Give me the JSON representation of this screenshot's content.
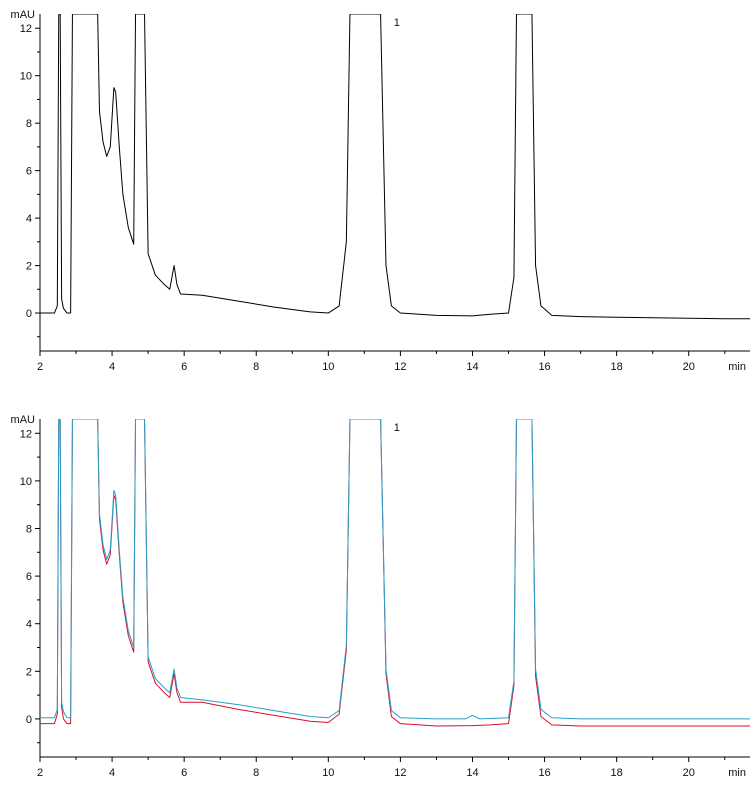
{
  "chart_data": [
    {
      "type": "line",
      "title": "",
      "xlabel": "min",
      "ylabel": "mAU",
      "xlim": [
        2,
        21.7
      ],
      "ylim": [
        -1.6,
        12.6
      ],
      "xticks": [
        2,
        4,
        6,
        8,
        10,
        12,
        14,
        16,
        18,
        20
      ],
      "yticks": [
        0,
        2,
        4,
        6,
        8,
        10,
        12
      ],
      "annotations": [
        {
          "text": "1",
          "x": 11.9,
          "y": 12.1
        }
      ],
      "series": [
        {
          "color": "#000000",
          "points": [
            [
              2.0,
              0.0
            ],
            [
              2.4,
              0.0
            ],
            [
              2.48,
              0.3
            ],
            [
              2.52,
              12.6
            ],
            [
              2.56,
              12.6
            ],
            [
              2.6,
              0.6
            ],
            [
              2.65,
              0.2
            ],
            [
              2.75,
              0.0
            ],
            [
              2.85,
              0.0
            ],
            [
              2.9,
              12.6
            ],
            [
              2.95,
              12.6
            ],
            [
              2.98,
              12.6
            ],
            [
              3.0,
              12.6
            ],
            [
              3.6,
              12.6
            ],
            [
              3.65,
              8.5
            ],
            [
              3.75,
              7.2
            ],
            [
              3.85,
              6.6
            ],
            [
              3.95,
              7.0
            ],
            [
              4.05,
              9.5
            ],
            [
              4.1,
              9.3
            ],
            [
              4.2,
              7.0
            ],
            [
              4.3,
              5.0
            ],
            [
              4.45,
              3.6
            ],
            [
              4.6,
              2.9
            ],
            [
              4.65,
              12.6
            ],
            [
              4.9,
              12.6
            ],
            [
              5.0,
              2.5
            ],
            [
              5.2,
              1.6
            ],
            [
              5.45,
              1.2
            ],
            [
              5.6,
              1.0
            ],
            [
              5.72,
              2.0
            ],
            [
              5.8,
              1.2
            ],
            [
              5.9,
              0.8
            ],
            [
              6.5,
              0.75
            ],
            [
              7.5,
              0.5
            ],
            [
              8.5,
              0.25
            ],
            [
              9.5,
              0.05
            ],
            [
              10.0,
              0.0
            ],
            [
              10.3,
              0.3
            ],
            [
              10.5,
              3.0
            ],
            [
              10.6,
              12.6
            ],
            [
              11.45,
              12.6
            ],
            [
              11.6,
              2.0
            ],
            [
              11.75,
              0.3
            ],
            [
              12.0,
              0.0
            ],
            [
              13.0,
              -0.1
            ],
            [
              14.0,
              -0.12
            ],
            [
              14.5,
              -0.05
            ],
            [
              15.0,
              0.0
            ],
            [
              15.15,
              1.5
            ],
            [
              15.22,
              12.6
            ],
            [
              15.65,
              12.6
            ],
            [
              15.75,
              2.0
            ],
            [
              15.9,
              0.3
            ],
            [
              16.2,
              -0.1
            ],
            [
              17.0,
              -0.15
            ],
            [
              18.0,
              -0.18
            ],
            [
              19.0,
              -0.2
            ],
            [
              20.0,
              -0.22
            ],
            [
              21.0,
              -0.24
            ],
            [
              21.7,
              -0.24
            ]
          ]
        }
      ]
    },
    {
      "type": "line",
      "title": "",
      "xlabel": "min",
      "ylabel": "mAU",
      "xlim": [
        2,
        21.7
      ],
      "ylim": [
        -1.6,
        12.6
      ],
      "xticks": [
        2,
        4,
        6,
        8,
        10,
        12,
        14,
        16,
        18,
        20
      ],
      "yticks": [
        0,
        2,
        4,
        6,
        8,
        10,
        12
      ],
      "annotations": [
        {
          "text": "1",
          "x": 11.9,
          "y": 12.1
        }
      ],
      "series": [
        {
          "color": "#d8102c",
          "points": [
            [
              2.0,
              -0.2
            ],
            [
              2.4,
              -0.2
            ],
            [
              2.48,
              0.2
            ],
            [
              2.52,
              12.6
            ],
            [
              2.56,
              12.6
            ],
            [
              2.6,
              0.5
            ],
            [
              2.65,
              0.0
            ],
            [
              2.75,
              -0.2
            ],
            [
              2.85,
              -0.2
            ],
            [
              2.9,
              12.6
            ],
            [
              3.0,
              12.6
            ],
            [
              3.6,
              12.6
            ],
            [
              3.65,
              8.4
            ],
            [
              3.75,
              7.1
            ],
            [
              3.85,
              6.5
            ],
            [
              3.95,
              6.9
            ],
            [
              4.05,
              9.4
            ],
            [
              4.1,
              9.2
            ],
            [
              4.2,
              6.9
            ],
            [
              4.3,
              4.9
            ],
            [
              4.45,
              3.5
            ],
            [
              4.6,
              2.8
            ],
            [
              4.65,
              12.6
            ],
            [
              4.9,
              12.6
            ],
            [
              5.0,
              2.4
            ],
            [
              5.2,
              1.5
            ],
            [
              5.45,
              1.1
            ],
            [
              5.6,
              0.9
            ],
            [
              5.72,
              1.9
            ],
            [
              5.8,
              1.1
            ],
            [
              5.9,
              0.7
            ],
            [
              6.5,
              0.7
            ],
            [
              7.5,
              0.4
            ],
            [
              8.5,
              0.15
            ],
            [
              9.5,
              -0.1
            ],
            [
              10.0,
              -0.15
            ],
            [
              10.3,
              0.2
            ],
            [
              10.5,
              2.9
            ],
            [
              10.6,
              12.6
            ],
            [
              11.45,
              12.6
            ],
            [
              11.6,
              1.9
            ],
            [
              11.75,
              0.1
            ],
            [
              12.0,
              -0.2
            ],
            [
              13.0,
              -0.3
            ],
            [
              14.0,
              -0.28
            ],
            [
              14.5,
              -0.25
            ],
            [
              15.0,
              -0.2
            ],
            [
              15.15,
              1.4
            ],
            [
              15.22,
              12.6
            ],
            [
              15.65,
              12.6
            ],
            [
              15.75,
              1.8
            ],
            [
              15.9,
              0.1
            ],
            [
              16.2,
              -0.25
            ],
            [
              17.0,
              -0.3
            ],
            [
              18.0,
              -0.3
            ],
            [
              19.0,
              -0.3
            ],
            [
              20.0,
              -0.3
            ],
            [
              21.0,
              -0.3
            ],
            [
              21.7,
              -0.3
            ]
          ]
        },
        {
          "color": "#2a9ec8",
          "points": [
            [
              2.0,
              0.05
            ],
            [
              2.4,
              0.05
            ],
            [
              2.48,
              0.4
            ],
            [
              2.52,
              12.6
            ],
            [
              2.56,
              12.6
            ],
            [
              2.6,
              0.7
            ],
            [
              2.65,
              0.3
            ],
            [
              2.75,
              0.05
            ],
            [
              2.85,
              0.05
            ],
            [
              2.9,
              12.6
            ],
            [
              3.0,
              12.6
            ],
            [
              3.6,
              12.6
            ],
            [
              3.65,
              8.6
            ],
            [
              3.75,
              7.3
            ],
            [
              3.85,
              6.7
            ],
            [
              3.95,
              7.1
            ],
            [
              4.05,
              9.6
            ],
            [
              4.1,
              9.4
            ],
            [
              4.2,
              7.1
            ],
            [
              4.3,
              5.1
            ],
            [
              4.45,
              3.7
            ],
            [
              4.6,
              3.0
            ],
            [
              4.65,
              12.6
            ],
            [
              4.9,
              12.6
            ],
            [
              5.0,
              2.6
            ],
            [
              5.2,
              1.7
            ],
            [
              5.45,
              1.3
            ],
            [
              5.6,
              1.1
            ],
            [
              5.72,
              2.1
            ],
            [
              5.8,
              1.3
            ],
            [
              5.9,
              0.9
            ],
            [
              6.5,
              0.8
            ],
            [
              7.5,
              0.6
            ],
            [
              8.5,
              0.35
            ],
            [
              9.5,
              0.1
            ],
            [
              10.0,
              0.05
            ],
            [
              10.3,
              0.35
            ],
            [
              10.5,
              3.1
            ],
            [
              10.6,
              12.6
            ],
            [
              11.45,
              12.6
            ],
            [
              11.6,
              2.1
            ],
            [
              11.75,
              0.35
            ],
            [
              12.0,
              0.05
            ],
            [
              13.0,
              0.0
            ],
            [
              13.8,
              0.0
            ],
            [
              14.0,
              0.15
            ],
            [
              14.2,
              0.0
            ],
            [
              15.0,
              0.05
            ],
            [
              15.15,
              1.6
            ],
            [
              15.22,
              12.6
            ],
            [
              15.65,
              12.6
            ],
            [
              15.75,
              2.1
            ],
            [
              15.9,
              0.4
            ],
            [
              16.2,
              0.05
            ],
            [
              17.0,
              0.0
            ],
            [
              18.0,
              0.0
            ],
            [
              19.0,
              0.0
            ],
            [
              20.0,
              0.0
            ],
            [
              21.0,
              0.0
            ],
            [
              21.7,
              0.0
            ]
          ]
        }
      ]
    }
  ]
}
